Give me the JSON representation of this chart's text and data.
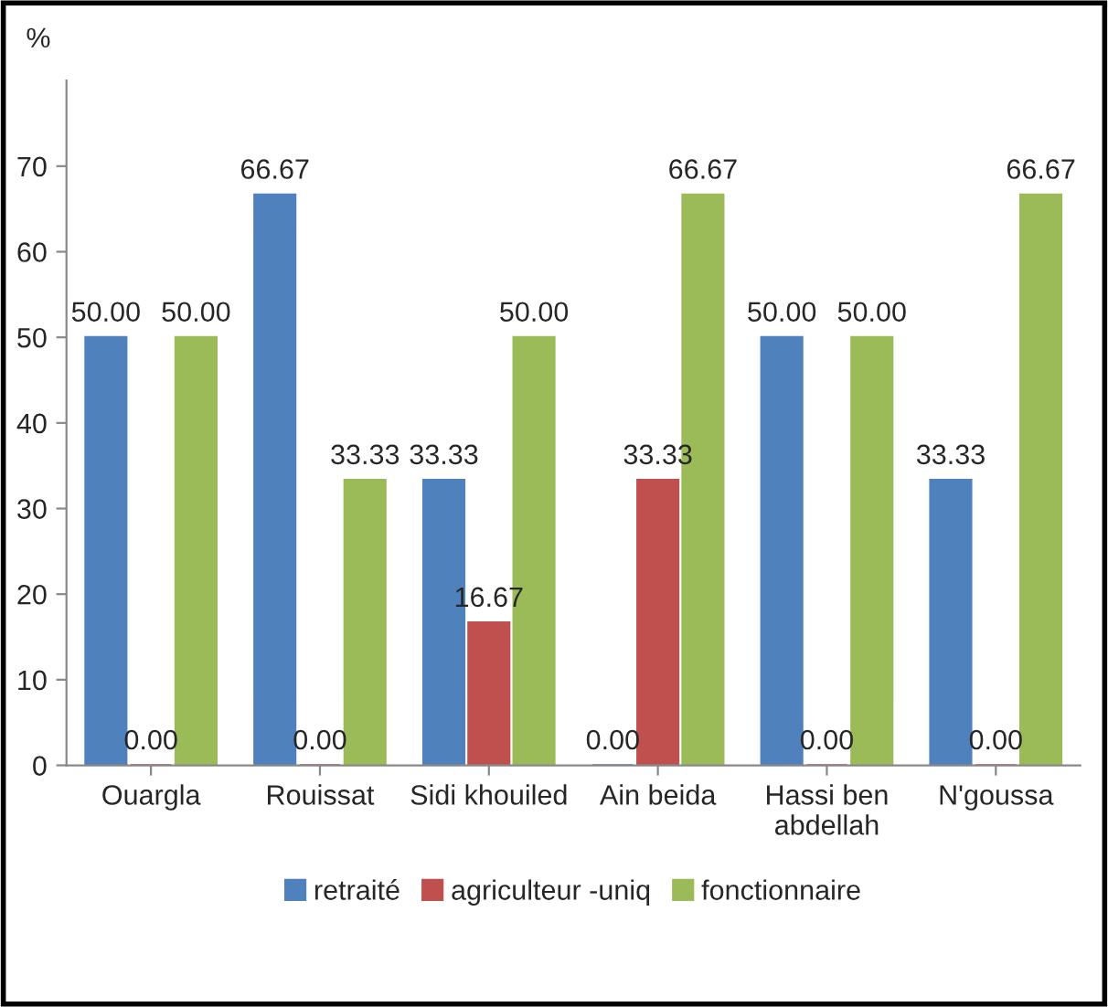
{
  "chart_data": {
    "type": "bar",
    "ylabel": "%",
    "categories": [
      "Ouargla",
      "Rouissat",
      "Sidi khouiled",
      "Ain beida",
      "Hassi ben\nabdellah",
      "N'goussa"
    ],
    "series": [
      {
        "name": "retraité",
        "color": "#4f81bd",
        "values": [
          50.0,
          66.67,
          33.33,
          0.0,
          50.0,
          33.33
        ],
        "value_labels": [
          "50.00",
          "66.67",
          "33.33",
          "0.00",
          "50.00",
          "33.33"
        ]
      },
      {
        "name": "agriculteur -uniq",
        "color": "#c0504d",
        "values": [
          0.0,
          0.0,
          16.67,
          33.33,
          0.0,
          0.0
        ],
        "value_labels": [
          "0.00",
          "0.00",
          "16.67",
          "33.33",
          "0.00",
          "0.00"
        ]
      },
      {
        "name": "fonctionnaire",
        "color": "#9bbb59",
        "values": [
          50.0,
          33.33,
          50.0,
          66.67,
          50.0,
          66.67
        ],
        "value_labels": [
          "50.00",
          "33.33",
          "50.00",
          "66.67",
          "50.00",
          "66.67"
        ]
      }
    ],
    "ylim": [
      0,
      80
    ],
    "yticks": [
      0,
      10,
      20,
      30,
      40,
      50,
      60,
      70
    ],
    "grid": false,
    "legend": "bottom"
  }
}
